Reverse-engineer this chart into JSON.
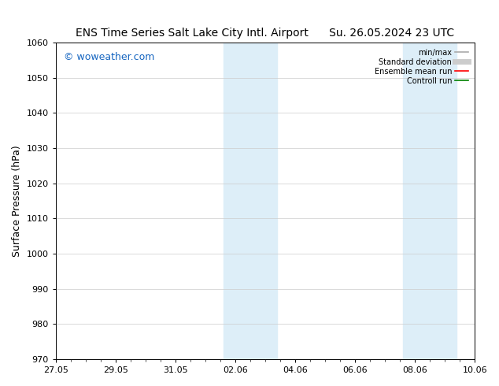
{
  "title_left": "ENS Time Series Salt Lake City Intl. Airport",
  "title_right": "Su. 26.05.2024 23 UTC",
  "ylabel": "Surface Pressure (hPa)",
  "ylim": [
    970,
    1060
  ],
  "yticks": [
    970,
    980,
    990,
    1000,
    1010,
    1020,
    1030,
    1040,
    1050,
    1060
  ],
  "xlim_start": 0,
  "xlim_end": 14,
  "xtick_labels": [
    "27.05",
    "29.05",
    "31.05",
    "02.06",
    "04.06",
    "06.06",
    "08.06",
    "10.06"
  ],
  "xtick_positions": [
    0,
    2,
    4,
    6,
    8,
    10,
    12,
    14
  ],
  "shaded_bands": [
    {
      "xstart": 5.6,
      "xend": 7.4
    },
    {
      "xstart": 11.6,
      "xend": 13.4
    }
  ],
  "shaded_color": "#ddeef8",
  "watermark_text": "© woweather.com",
  "watermark_color": "#1565C0",
  "legend_items": [
    {
      "label": "min/max",
      "color": "#aaaaaa",
      "lw": 1.2,
      "style": "solid"
    },
    {
      "label": "Standard deviation",
      "color": "#cccccc",
      "lw": 5,
      "style": "solid"
    },
    {
      "label": "Ensemble mean run",
      "color": "red",
      "lw": 1.2,
      "style": "solid"
    },
    {
      "label": "Controll run",
      "color": "green",
      "lw": 1.2,
      "style": "solid"
    }
  ],
  "bg_color": "#ffffff",
  "grid_color": "#cccccc",
  "title_fontsize": 10,
  "ylabel_fontsize": 9,
  "tick_fontsize": 8,
  "watermark_fontsize": 9,
  "legend_fontsize": 7
}
